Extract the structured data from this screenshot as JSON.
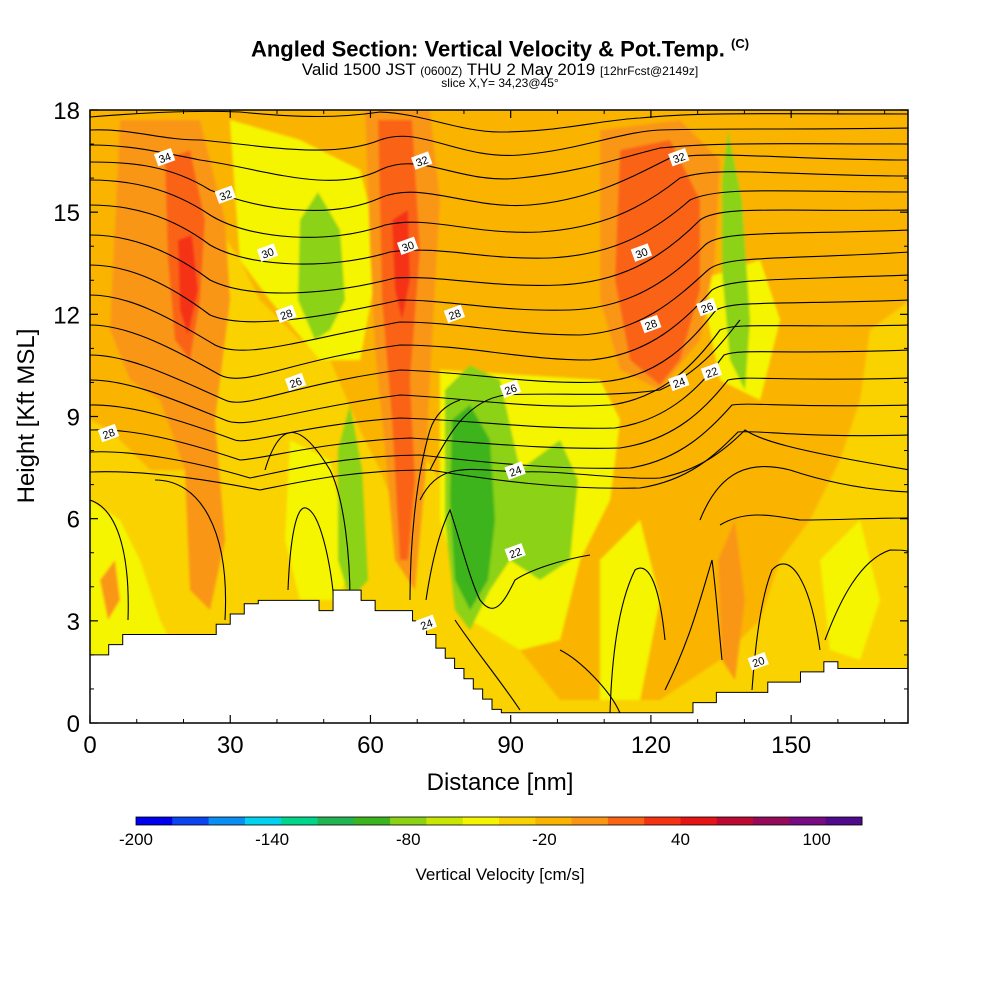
{
  "title": {
    "main": "Angled Section: Vertical Velocity & Pot.Temp.",
    "main_tag": "(C)",
    "valid_prefix": "Valid 1500 JST",
    "valid_zulu": "(0600Z)",
    "valid_date": "THU 2 May 2019",
    "valid_fcst": "[12hrFcst@2149z]",
    "slice": "slice X,Y= 34,23@45°"
  },
  "chart_data": {
    "type": "heatmap",
    "title": "Angled Section: Vertical Velocity & Pot.Temp. (C)",
    "xlabel": "Distance [nm]",
    "ylabel": "Height [Kft MSL]",
    "xlim": [
      0,
      175
    ],
    "ylim": [
      0,
      18
    ],
    "xticks": [
      0,
      30,
      60,
      90,
      120,
      150
    ],
    "yticks": [
      0,
      3,
      6,
      9,
      12,
      15,
      18
    ],
    "colorbar": {
      "label": "Vertical Velocity [cm/s]",
      "tick_labels": [
        "-200",
        "-140",
        "-80",
        "-20",
        "40",
        "100"
      ],
      "tick_values": [
        -200,
        -140,
        -80,
        -20,
        40,
        100
      ],
      "min": -200,
      "max": 120,
      "colors": [
        "#0000ee",
        "#0a46f0",
        "#0a8ef4",
        "#00d2f0",
        "#00d68a",
        "#22b450",
        "#3cb41e",
        "#8cd214",
        "#c8e600",
        "#f5f500",
        "#fad200",
        "#fab400",
        "#fa9614",
        "#fa6414",
        "#f53214",
        "#e61414",
        "#be0a32",
        "#960a5a",
        "#780a82",
        "#500a8c"
      ]
    },
    "isentrope_labels": [
      {
        "text": "34",
        "x": 16,
        "y": 16.6
      },
      {
        "text": "32",
        "x": 29,
        "y": 15.5
      },
      {
        "text": "30",
        "x": 38,
        "y": 13.8
      },
      {
        "text": "28",
        "x": 42,
        "y": 12.0
      },
      {
        "text": "26",
        "x": 44,
        "y": 10.0
      },
      {
        "text": "28",
        "x": 4,
        "y": 8.5
      },
      {
        "text": "32",
        "x": 71,
        "y": 16.5
      },
      {
        "text": "30",
        "x": 68,
        "y": 14.0
      },
      {
        "text": "28",
        "x": 78,
        "y": 12.0
      },
      {
        "text": "26",
        "x": 90,
        "y": 9.8
      },
      {
        "text": "24",
        "x": 91,
        "y": 7.4
      },
      {
        "text": "22",
        "x": 91,
        "y": 5.0
      },
      {
        "text": "24",
        "x": 72,
        "y": 2.9
      },
      {
        "text": "32",
        "x": 126,
        "y": 16.6
      },
      {
        "text": "30",
        "x": 118,
        "y": 13.8
      },
      {
        "text": "28",
        "x": 120,
        "y": 11.7
      },
      {
        "text": "26",
        "x": 132,
        "y": 12.2
      },
      {
        "text": "24",
        "x": 126,
        "y": 10.0
      },
      {
        "text": "22",
        "x": 133,
        "y": 10.3
      },
      {
        "text": "20",
        "x": 143,
        "y": 1.8
      }
    ],
    "terrain": {
      "x": [
        0,
        4,
        4,
        7,
        7,
        10,
        10,
        27,
        27,
        30,
        30,
        33,
        33,
        36,
        36,
        49,
        49,
        52,
        52,
        58,
        58,
        61,
        61,
        69,
        69,
        72,
        72,
        74,
        74,
        76,
        76,
        78,
        78,
        80,
        80,
        82,
        82,
        84,
        84,
        86,
        86,
        88,
        88,
        129,
        129,
        134,
        134,
        145,
        145,
        152,
        152,
        157,
        157,
        160,
        160,
        175
      ],
      "y": [
        2.0,
        2.0,
        2.3,
        2.3,
        2.6,
        2.6,
        2.6,
        2.6,
        2.9,
        2.9,
        3.2,
        3.2,
        3.5,
        3.5,
        3.6,
        3.6,
        3.3,
        3.3,
        3.9,
        3.9,
        3.6,
        3.6,
        3.3,
        3.3,
        3.0,
        3.0,
        2.6,
        2.6,
        2.2,
        2.2,
        1.9,
        1.9,
        1.6,
        1.6,
        1.3,
        1.3,
        1.0,
        1.0,
        0.7,
        0.7,
        0.4,
        0.4,
        0.3,
        0.3,
        0.6,
        0.6,
        0.9,
        0.9,
        1.2,
        1.2,
        1.5,
        1.5,
        1.8,
        1.8,
        1.6,
        1.6
      ]
    }
  }
}
